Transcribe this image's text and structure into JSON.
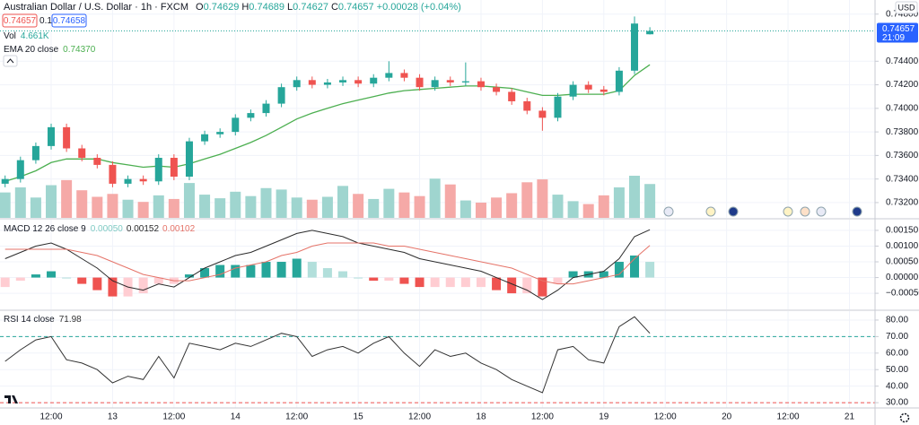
{
  "header": {
    "title": "Australian Dollar / U.S. Dollar · 1h · FXCM",
    "ohlc_labels": [
      "O",
      "H",
      "L",
      "C"
    ],
    "change": "+0.00028 (+0.04%)",
    "sell": 0.74657,
    "spread": 0.1,
    "buy": 0.74658
  },
  "chart_data": [
    {
      "type": "candlestick",
      "x": [
        1,
        4,
        7,
        10,
        13,
        16,
        19,
        22,
        25,
        28,
        31,
        34,
        37,
        40,
        43,
        46,
        49,
        52,
        55,
        58,
        61,
        64,
        67,
        70,
        73,
        76,
        79,
        82,
        85,
        88,
        91,
        94,
        97,
        100,
        103,
        106,
        109,
        112,
        115,
        118,
        121,
        124,
        127
      ],
      "open": [
        0.7336,
        0.734,
        0.7356,
        0.7368,
        0.7384,
        0.7366,
        0.7358,
        0.7352,
        0.7336,
        0.734,
        0.7338,
        0.7358,
        0.7342,
        0.7372,
        0.7378,
        0.738,
        0.7392,
        0.7396,
        0.7404,
        0.7418,
        0.7424,
        0.742,
        0.7422,
        0.7424,
        0.7421,
        0.7426,
        0.743,
        0.7426,
        0.7418,
        0.7424,
        0.7422,
        0.7423,
        0.7418,
        0.7414,
        0.7406,
        0.7398,
        0.7392,
        0.741,
        0.742,
        0.7416,
        0.7414,
        0.7432,
        0.74629
      ],
      "high": [
        0.7343,
        0.7359,
        0.7371,
        0.7387,
        0.7387,
        0.7369,
        0.7361,
        0.7355,
        0.7343,
        0.7343,
        0.7361,
        0.7361,
        0.7375,
        0.7381,
        0.7383,
        0.7395,
        0.7399,
        0.7407,
        0.7421,
        0.7427,
        0.7427,
        0.7425,
        0.7427,
        0.7427,
        0.7429,
        0.744,
        0.7433,
        0.7429,
        0.7427,
        0.7427,
        0.7439,
        0.7426,
        0.7421,
        0.7417,
        0.7409,
        0.7401,
        0.7413,
        0.7423,
        0.7423,
        0.7419,
        0.7435,
        0.7478,
        0.74689
      ],
      "low": [
        0.7333,
        0.7337,
        0.7353,
        0.7365,
        0.7363,
        0.7355,
        0.7349,
        0.7333,
        0.7333,
        0.7335,
        0.7335,
        0.7339,
        0.7339,
        0.7369,
        0.7375,
        0.7377,
        0.7389,
        0.7393,
        0.7401,
        0.7415,
        0.7417,
        0.7417,
        0.7419,
        0.7418,
        0.7418,
        0.7423,
        0.7423,
        0.7415,
        0.7415,
        0.7419,
        0.7419,
        0.7415,
        0.7411,
        0.7403,
        0.7395,
        0.7381,
        0.7389,
        0.7407,
        0.7413,
        0.7411,
        0.7411,
        0.7429,
        0.74627
      ],
      "close": [
        0.734,
        0.7356,
        0.7368,
        0.7384,
        0.7366,
        0.7358,
        0.7352,
        0.7336,
        0.734,
        0.7338,
        0.7358,
        0.7342,
        0.7372,
        0.7378,
        0.738,
        0.7392,
        0.7396,
        0.7404,
        0.7418,
        0.7424,
        0.742,
        0.7422,
        0.7424,
        0.7421,
        0.7426,
        0.743,
        0.7426,
        0.7418,
        0.7424,
        0.7422,
        0.7423,
        0.7418,
        0.7414,
        0.7406,
        0.7398,
        0.7392,
        0.741,
        0.742,
        0.7416,
        0.7414,
        0.7432,
        0.7472,
        0.74657
      ],
      "up_color": "#26a69a",
      "down_color": "#ef5350",
      "xlim": [
        0,
        171
      ],
      "xticks": [
        {
          "value": 10,
          "label": "12:00"
        },
        {
          "value": 22,
          "label": "13"
        },
        {
          "value": 34,
          "label": "12:00"
        },
        {
          "value": 46,
          "label": "14"
        },
        {
          "value": 58,
          "label": "12:00"
        },
        {
          "value": 70,
          "label": "15"
        },
        {
          "value": 82,
          "label": "12:00"
        },
        {
          "value": 94,
          "label": "18"
        },
        {
          "value": 106,
          "label": "12:00"
        },
        {
          "value": 118,
          "label": "19"
        },
        {
          "value": 130,
          "label": "12:00"
        },
        {
          "value": 142,
          "label": "20"
        },
        {
          "value": 154,
          "label": "12:00"
        },
        {
          "value": 166,
          "label": "21"
        }
      ],
      "ylim": [
        0.7307,
        0.7492
      ],
      "yticks": [
        {
          "value": 0.748,
          "label": "0.74800"
        },
        {
          "value": 0.744,
          "label": "0.74400"
        },
        {
          "value": 0.742,
          "label": "0.74200"
        },
        {
          "value": 0.74,
          "label": "0.74000"
        },
        {
          "value": 0.738,
          "label": "0.73800"
        },
        {
          "value": 0.736,
          "label": "0.73600"
        },
        {
          "value": 0.734,
          "label": "0.73400"
        },
        {
          "value": 0.732,
          "label": "0.73200"
        }
      ],
      "grid": true,
      "volume": {
        "name": "Vol",
        "values": [
          3.5,
          4.2,
          2.8,
          4.5,
          5.2,
          3.8,
          2.9,
          3.3,
          2.5,
          2.2,
          3.1,
          2.6,
          4.8,
          3.2,
          2.7,
          3.6,
          3.0,
          4.1,
          3.9,
          2.8,
          2.5,
          2.9,
          4.4,
          3.3,
          2.6,
          4.0,
          3.5,
          3.0,
          5.4,
          4.6,
          2.4,
          2.1,
          2.8,
          3.4,
          4.9,
          5.3,
          3.2,
          2.3,
          1.9,
          3.1,
          4.2,
          5.8,
          4.661
        ],
        "value_label": "4.661K",
        "up_color": "#9fd5cf",
        "down_color": "#f5a9a7"
      },
      "series": [
        {
          "name": "EMA 20 close",
          "color": "#4caf50",
          "values": [
            0.7338,
            0.7342,
            0.7347,
            0.7354,
            0.7357,
            0.7357,
            0.7357,
            0.7354,
            0.7352,
            0.735,
            0.7351,
            0.735,
            0.7353,
            0.7357,
            0.7361,
            0.7366,
            0.7371,
            0.7377,
            0.7384,
            0.7391,
            0.7396,
            0.74,
            0.7404,
            0.7407,
            0.741,
            0.7413,
            0.7415,
            0.7416,
            0.7417,
            0.7418,
            0.7419,
            0.7419,
            0.7418,
            0.7417,
            0.7414,
            0.7411,
            0.7411,
            0.7412,
            0.7412,
            0.7412,
            0.7415,
            0.7428,
            0.7437
          ],
          "value_label": "0.74370"
        }
      ],
      "countdown": "21:09",
      "currency": "USD",
      "price_color": "#2962ff"
    },
    {
      "type": "macd",
      "name": "MACD 12 26 close 9",
      "x": [
        1,
        4,
        7,
        10,
        13,
        16,
        19,
        22,
        25,
        28,
        31,
        34,
        37,
        40,
        43,
        46,
        49,
        52,
        55,
        58,
        61,
        64,
        67,
        70,
        73,
        76,
        79,
        82,
        85,
        88,
        91,
        94,
        97,
        100,
        103,
        106,
        109,
        112,
        115,
        118,
        121,
        124,
        127
      ],
      "xlim": [
        0,
        171
      ],
      "ylim": [
        -0.00101,
        0.00184
      ],
      "yticks": [
        {
          "value": 0.0015,
          "label": "0.00150"
        },
        {
          "value": 0.001,
          "label": "0.00100"
        },
        {
          "value": 0.0005,
          "label": "0.00050"
        },
        {
          "value": 0,
          "label": "0.00000"
        },
        {
          "value": -0.0005,
          "label": "−0.00050"
        }
      ],
      "histogram": {
        "values": [
          -0.0003,
          -0.0001,
          0.0001,
          0.0002,
          0,
          -0.0002,
          -0.0004,
          -0.0006,
          -0.0006,
          -0.0005,
          -0.0002,
          -0.0002,
          0.0001,
          0.0003,
          0.0004,
          0.0004,
          0.0004,
          0.0005,
          0.0005,
          0.0006,
          0.0005,
          0.0003,
          0.0002,
          0,
          -0.0001,
          -0.0001,
          -0.0002,
          -0.0003,
          -0.0003,
          -0.0003,
          -0.0003,
          -0.0003,
          -0.0004,
          -0.0005,
          -0.0005,
          -0.0006,
          -0.0002,
          0.0002,
          0.0002,
          0.0002,
          0.0005,
          0.0007,
          0.0005
        ],
        "value_label": "0.00050",
        "colors": {
          "up_grow": "#26a69a",
          "up_fall": "#b2dfdb",
          "down_grow": "#ef5350",
          "down_fall": "#ffcdd2"
        }
      },
      "series": [
        {
          "color": "#2b2b2b",
          "values": [
            0.0006,
            0.0008,
            0.001,
            0.0011,
            0.0009,
            0.0006,
            0.0003,
            -0.0001,
            -0.0003,
            -0.0004,
            -0.0002,
            -0.0003,
            0,
            0.0003,
            0.0005,
            0.0007,
            0.0008,
            0.001,
            0.0012,
            0.0014,
            0.0015,
            0.0014,
            0.0013,
            0.0011,
            0.001,
            0.0009,
            0.0008,
            0.0006,
            0.0005,
            0.0004,
            0.0003,
            0.0002,
            0,
            -0.0002,
            -0.0004,
            -0.0007,
            -0.0004,
            0,
            0.0001,
            0.0002,
            0.0006,
            0.0013,
            0.00152
          ],
          "value_label": "0.00152"
        },
        {
          "color": "#e57368",
          "values": [
            0.0009,
            0.0009,
            0.0009,
            0.0009,
            0.0009,
            0.0008,
            0.0007,
            0.0005,
            0.0003,
            0.0001,
            0,
            -0.0001,
            -0.0001,
            0,
            0.0001,
            0.0003,
            0.0004,
            0.0005,
            0.0007,
            0.0008,
            0.001,
            0.0011,
            0.0011,
            0.0011,
            0.0011,
            0.001,
            0.001,
            0.0009,
            0.0008,
            0.0007,
            0.0006,
            0.0005,
            0.0004,
            0.0003,
            0.0001,
            -0.0001,
            -0.0002,
            -0.0002,
            -0.0001,
            0,
            0.0001,
            0.0006,
            0.00102
          ],
          "value_label": "0.00102"
        }
      ]
    },
    {
      "type": "line",
      "name": "RSI 14 close",
      "x": [
        1,
        4,
        7,
        10,
        13,
        16,
        19,
        22,
        25,
        28,
        31,
        34,
        37,
        40,
        43,
        46,
        49,
        52,
        55,
        58,
        61,
        64,
        67,
        70,
        73,
        76,
        79,
        82,
        85,
        88,
        91,
        94,
        97,
        100,
        103,
        106,
        109,
        112,
        115,
        118,
        121,
        124,
        127
      ],
      "xlim": [
        0,
        171
      ],
      "ylim": [
        26.8,
        85.4
      ],
      "yticks": [
        {
          "value": 80,
          "label": "80.00"
        },
        {
          "value": 70,
          "label": "70.00"
        },
        {
          "value": 60,
          "label": "60.00"
        },
        {
          "value": 50,
          "label": "50.00"
        },
        {
          "value": 40,
          "label": "40.00"
        },
        {
          "value": 30,
          "label": "30.00"
        }
      ],
      "levels": [
        70,
        30
      ],
      "level_colors": [
        "#26a69a",
        "#ef5350"
      ],
      "series": [
        {
          "color": "#333333",
          "values": [
            55,
            62,
            68,
            70,
            56,
            54,
            50,
            42,
            46,
            44,
            58,
            45,
            66,
            64,
            62,
            66,
            64,
            68,
            72,
            70,
            58,
            62,
            64,
            60,
            66,
            70,
            60,
            52,
            62,
            58,
            60,
            54,
            50,
            44,
            40,
            36,
            62,
            64,
            56,
            54,
            76,
            82,
            71.98
          ]
        }
      ]
    }
  ]
}
